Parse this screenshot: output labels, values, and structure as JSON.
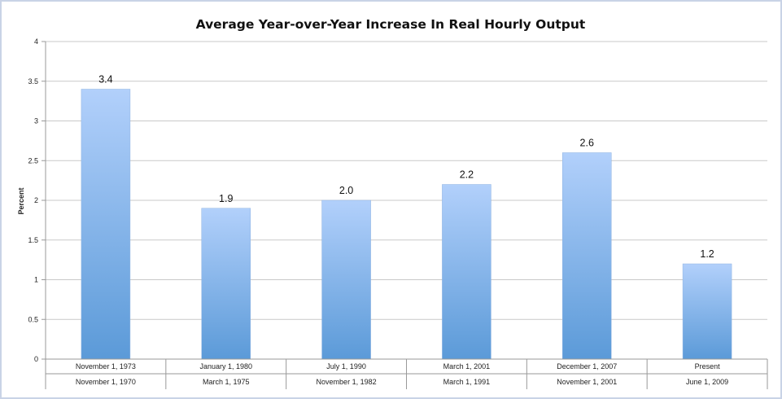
{
  "chart_data": {
    "type": "bar",
    "title": "Average Year-over-Year Increase In Real Hourly Output",
    "ylabel": "Percent",
    "ylim": [
      0,
      4
    ],
    "yticks": [
      "0",
      "0.5",
      "1",
      "1.5",
      "2",
      "2.5",
      "3",
      "3.5",
      "4"
    ],
    "grid": true,
    "legend": "none",
    "categories": [
      {
        "top": "November 1, 1973",
        "bottom": "November 1, 1970"
      },
      {
        "top": "January 1, 1980",
        "bottom": "March 1, 1975"
      },
      {
        "top": "July 1, 1990",
        "bottom": "November 1, 1982"
      },
      {
        "top": "March 1, 2001",
        "bottom": "March 1, 1991"
      },
      {
        "top": "December 1, 2007",
        "bottom": "November 1, 2001"
      },
      {
        "top": "Present",
        "bottom": "June 1, 2009"
      }
    ],
    "values": [
      3.4,
      1.9,
      2.0,
      2.2,
      2.6,
      1.2
    ],
    "data_labels": [
      "3.4",
      "1.9",
      "2.0",
      "2.2",
      "2.6",
      "1.2"
    ],
    "colors": {
      "bar_top": "#b2d0fb",
      "bar_bottom": "#5b9ad8",
      "grid": "#c9c9c9"
    }
  }
}
